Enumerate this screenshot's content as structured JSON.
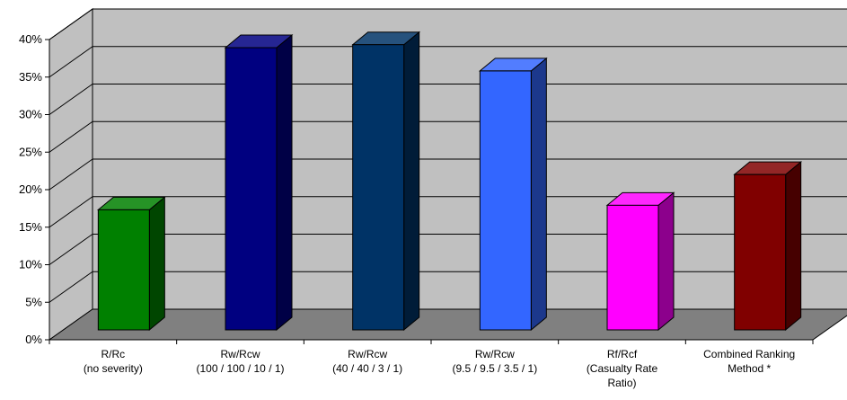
{
  "chart_data": {
    "type": "bar",
    "title": "",
    "xlabel": "",
    "ylabel": "",
    "ylim": [
      0,
      40
    ],
    "yticks": [
      0,
      5,
      10,
      15,
      20,
      25,
      30,
      35,
      40
    ],
    "ytick_labels": [
      "0%",
      "5%",
      "10%",
      "15%",
      "20%",
      "25%",
      "30%",
      "35%",
      "40%"
    ],
    "grid": true,
    "style": "3d-column",
    "categories": [
      {
        "lines": [
          "R/Rc",
          "(no severity)"
        ]
      },
      {
        "lines": [
          "Rw/Rcw",
          "(100 / 100 / 10 / 1)"
        ]
      },
      {
        "lines": [
          "Rw/Rcw",
          "(40 / 40 / 3 / 1)"
        ]
      },
      {
        "lines": [
          "Rw/Rcw",
          "(9.5 / 9.5 / 3.5 / 1)"
        ]
      },
      {
        "lines": [
          "Rf/Rcf",
          "(Casualty Rate",
          "Ratio)"
        ]
      },
      {
        "lines": [
          "Combined Ranking",
          "Method *"
        ]
      }
    ],
    "values": [
      16,
      37.6,
      38,
      34.5,
      16.6,
      20.7
    ],
    "colors": [
      "#008000",
      "#000080",
      "#003366",
      "#3366FF",
      "#FF00FF",
      "#800000"
    ],
    "wall_color": "#C0C0C0",
    "floor_color": "#808080"
  }
}
